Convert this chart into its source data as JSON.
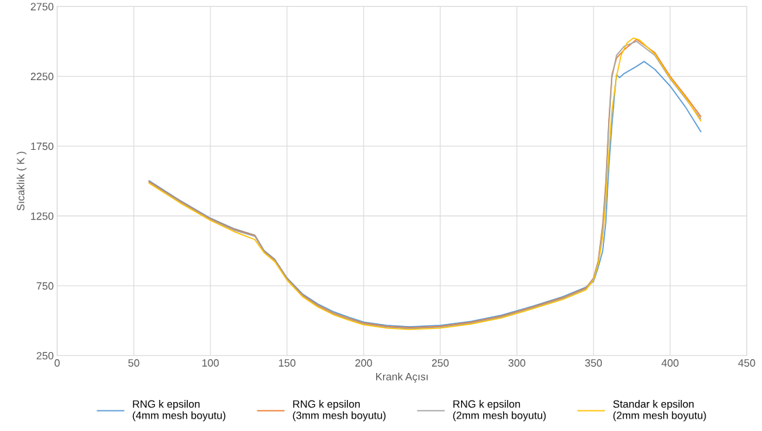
{
  "chart_data": {
    "type": "line",
    "xlabel": "Krank Açısı",
    "ylabel": "Sıcaklık ( K )",
    "xlim": [
      0,
      450
    ],
    "xticks": [
      0,
      50,
      100,
      150,
      200,
      250,
      300,
      350,
      400,
      450
    ],
    "ylim": [
      250,
      2750
    ],
    "yticks": [
      250,
      750,
      1250,
      1750,
      2250,
      2750
    ],
    "grid": true,
    "legend": "bottom",
    "marker": "none",
    "line_style": "solid",
    "series": [
      {
        "name": "RNG k epsilon\n(4mm mesh boyutu)",
        "color": "#5b9bd5",
        "x": [
          60,
          80,
          100,
          115,
          129,
          135,
          142,
          150,
          160,
          170,
          180,
          190,
          200,
          215,
          230,
          250,
          270,
          290,
          310,
          330,
          345,
          350,
          353,
          356,
          358,
          360,
          362,
          364,
          365,
          367,
          370,
          378,
          383,
          390,
          400,
          410,
          420
        ],
        "values": [
          1502,
          1362,
          1234,
          1160,
          1112,
          1003,
          939,
          806,
          692,
          620,
          565,
          526,
          490,
          466,
          456,
          466,
          495,
          539,
          603,
          672,
          740,
          780,
          880,
          1000,
          1200,
          1600,
          1900,
          2150,
          2260,
          2240,
          2270,
          2320,
          2356,
          2300,
          2180,
          2030,
          1854
        ]
      },
      {
        "name": "RNG k epsilon\n(3mm mesh boyutu)",
        "color": "#ed7d31",
        "x": [
          60,
          80,
          100,
          115,
          129,
          135,
          142,
          150,
          160,
          170,
          180,
          190,
          200,
          215,
          230,
          250,
          270,
          290,
          310,
          330,
          345,
          350,
          353,
          356,
          358,
          360,
          362,
          365,
          370,
          378,
          390,
          400,
          410,
          420
        ],
        "values": [
          1496,
          1357,
          1229,
          1155,
          1110,
          998,
          934,
          801,
          685,
          611,
          556,
          517,
          483,
          459,
          449,
          459,
          488,
          532,
          596,
          665,
          734,
          806,
          925,
          1190,
          1490,
          1930,
          2260,
          2380,
          2440,
          2514,
          2420,
          2250,
          2110,
          1963
        ]
      },
      {
        "name": "RNG k epsilon\n(2mm mesh boyutu)",
        "color": "#a5a5a5",
        "x": [
          60,
          80,
          100,
          115,
          129,
          135,
          142,
          150,
          160,
          170,
          180,
          190,
          200,
          215,
          230,
          250,
          270,
          290,
          310,
          330,
          345,
          350,
          353,
          356,
          358,
          360,
          362,
          365,
          370,
          378,
          390,
          400,
          410,
          420
        ],
        "values": [
          1490,
          1352,
          1224,
          1150,
          1104,
          993,
          929,
          796,
          679,
          605,
          550,
          511,
          477,
          453,
          443,
          453,
          482,
          526,
          590,
          659,
          728,
          801,
          915,
          1165,
          1460,
          1900,
          2240,
          2400,
          2465,
          2500,
          2400,
          2232,
          2092,
          1945
        ]
      },
      {
        "name": "Standar k epsilon\n(2mm mesh boyutu)",
        "color": "#ffc000",
        "x": [
          60,
          80,
          100,
          115,
          129,
          135,
          142,
          150,
          160,
          170,
          180,
          190,
          200,
          215,
          230,
          250,
          270,
          290,
          310,
          330,
          345,
          350,
          353,
          356,
          358,
          360,
          362,
          365,
          368,
          372,
          376,
          380,
          390,
          400,
          410,
          420
        ],
        "values": [
          1484,
          1345,
          1218,
          1140,
          1080,
          987,
          923,
          790,
          673,
          599,
          544,
          505,
          471,
          447,
          437,
          447,
          476,
          520,
          584,
          652,
          720,
          790,
          900,
          1100,
          1350,
          1700,
          2000,
          2250,
          2400,
          2490,
          2524,
          2510,
          2410,
          2240,
          2100,
          1930
        ]
      }
    ]
  }
}
